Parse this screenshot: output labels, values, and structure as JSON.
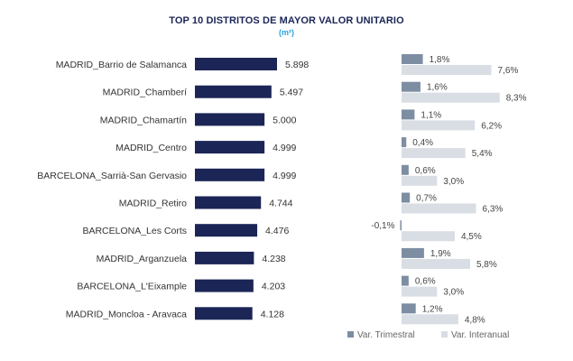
{
  "chart_data": [
    {
      "type": "bar",
      "orientation": "horizontal",
      "title": "TOP 10 DISTRITOS DE MAYOR VALOR UNITARIO",
      "subtitle": "(m²)",
      "categories": [
        "MADRID_Barrio de Salamanca",
        "MADRID_Chamberí",
        "MADRID_Chamartín",
        "MADRID_Centro",
        "BARCELONA_Sarrià-San Gervasio",
        "MADRID_Retiro",
        "BARCELONA_Les Corts",
        "MADRID_Arganzuela",
        "BARCELONA_L'Eixample",
        "MADRID_Moncloa - Aravaca"
      ],
      "values": [
        5898,
        5497,
        5000,
        4999,
        4999,
        4744,
        4476,
        4238,
        4203,
        4128
      ],
      "value_labels": [
        "5.898",
        "5.497",
        "5.000",
        "4.999",
        "4.999",
        "4.744",
        "4.476",
        "4.238",
        "4.203",
        "4.128"
      ],
      "color": "#1b2556"
    },
    {
      "type": "bar",
      "orientation": "horizontal",
      "legend_position": "bottom-right",
      "series": [
        {
          "name": "Var. Trimestral",
          "color": "#7d8ea3",
          "values": [
            1.8,
            1.6,
            1.1,
            0.4,
            0.6,
            0.7,
            -0.1,
            1.9,
            0.6,
            1.2
          ],
          "labels": [
            "1,8%",
            "1,6%",
            "1,1%",
            "0,4%",
            "0,6%",
            "0,7%",
            "-0,1%",
            "1,9%",
            "0,6%",
            "1,2%"
          ]
        },
        {
          "name": "Var. Interanual",
          "color": "#d9dde4",
          "values": [
            7.6,
            8.3,
            6.2,
            5.4,
            3.0,
            6.3,
            4.5,
            5.8,
            3.0,
            4.8
          ],
          "labels": [
            "7,6%",
            "8,3%",
            "6,2%",
            "5,4%",
            "3,0%",
            "6,3%",
            "4,5%",
            "5,8%",
            "3,0%",
            "4,8%"
          ]
        }
      ]
    }
  ]
}
